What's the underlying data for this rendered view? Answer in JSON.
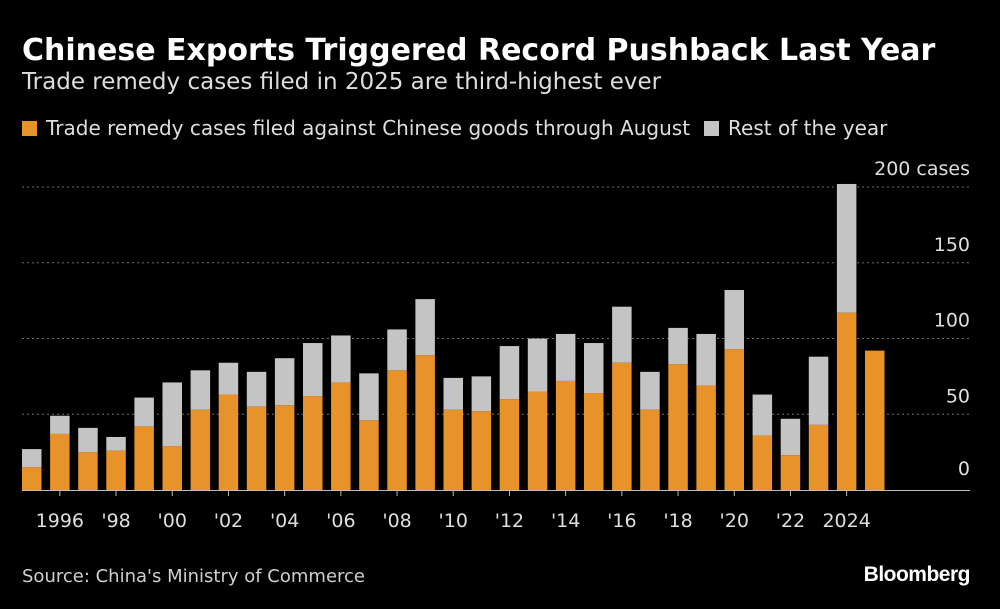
{
  "header": {
    "title": "Chinese Exports Triggered Record Pushback Last Year",
    "subtitle": "Trade remedy cases filed in 2025 are third-highest ever"
  },
  "legend": {
    "through_august": "Trade remedy cases filed against Chinese goods through August",
    "rest_of_year": "Rest of the year"
  },
  "footer": {
    "source": "Source: China's Ministry of Commerce",
    "brand": "Bloomberg"
  },
  "colors": {
    "background": "#000000",
    "through_august": "#e8922a",
    "rest_of_year": "#c4c4c4",
    "gridline": "#6e6e6e",
    "tick_text": "#dedede"
  },
  "chart_data": {
    "type": "bar",
    "stacked": true,
    "title": "Chinese Exports Triggered Record Pushback Last Year",
    "subtitle": "Trade remedy cases filed in 2025 are third-highest ever",
    "xlabel": "",
    "ylabel": "",
    "ylim": [
      0,
      200
    ],
    "y_ticks": [
      0,
      50,
      100,
      150,
      200
    ],
    "y_tick_labels": [
      "0",
      "50",
      "100",
      "150",
      "200 cases"
    ],
    "categories": [
      "1995",
      "1996",
      "1997",
      "1998",
      "1999",
      "2000",
      "2001",
      "2002",
      "2003",
      "2004",
      "2005",
      "2006",
      "2007",
      "2008",
      "2009",
      "2010",
      "2011",
      "2012",
      "2013",
      "2014",
      "2015",
      "2016",
      "2017",
      "2018",
      "2019",
      "2020",
      "2021",
      "2022",
      "2023",
      "2024",
      "2025"
    ],
    "x_tick_labels": [
      {
        "category": "1996",
        "label": "1996"
      },
      {
        "category": "1998",
        "label": "'98"
      },
      {
        "category": "2000",
        "label": "'00"
      },
      {
        "category": "2002",
        "label": "'02"
      },
      {
        "category": "2004",
        "label": "'04"
      },
      {
        "category": "2006",
        "label": "'06"
      },
      {
        "category": "2008",
        "label": "'08"
      },
      {
        "category": "2010",
        "label": "'10"
      },
      {
        "category": "2012",
        "label": "'12"
      },
      {
        "category": "2014",
        "label": "'14"
      },
      {
        "category": "2016",
        "label": "'16"
      },
      {
        "category": "2018",
        "label": "'18"
      },
      {
        "category": "2020",
        "label": "'20"
      },
      {
        "category": "2022",
        "label": "'22"
      },
      {
        "category": "2024",
        "label": "2024"
      }
    ],
    "series": [
      {
        "name": "Trade remedy cases filed against Chinese goods through August",
        "values": [
          15,
          37,
          25,
          26,
          42,
          29,
          53,
          63,
          55,
          56,
          62,
          71,
          46,
          79,
          89,
          53,
          52,
          60,
          65,
          72,
          64,
          84,
          53,
          83,
          69,
          93,
          36,
          23,
          43,
          117,
          92
        ]
      },
      {
        "name": "Rest of the year",
        "values": [
          12,
          12,
          16,
          9,
          19,
          42,
          26,
          21,
          23,
          31,
          35,
          31,
          31,
          27,
          37,
          21,
          23,
          35,
          35,
          31,
          33,
          37,
          25,
          24,
          34,
          39,
          27,
          24,
          45,
          85,
          0
        ]
      }
    ],
    "grid": true,
    "legend_position": "top-left"
  }
}
